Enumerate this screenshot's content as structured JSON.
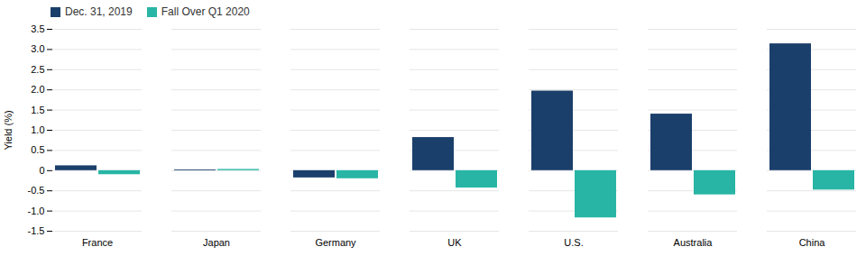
{
  "chart_data": {
    "type": "bar",
    "categories": [
      "France",
      "Japan",
      "Germany",
      "UK",
      "U.S.",
      "Australia",
      "China"
    ],
    "series": [
      {
        "name": "Dec. 31, 2019",
        "color": "#1b3f6b",
        "values": [
          0.12,
          0.02,
          -0.18,
          0.82,
          1.97,
          1.4,
          3.14
        ]
      },
      {
        "name": "Fall Over Q1 2020",
        "color": "#28b5a5",
        "values": [
          -0.1,
          0.03,
          -0.2,
          -0.43,
          -1.17,
          -0.6,
          -0.48
        ]
      }
    ],
    "ylabel": "Yield (%)",
    "ylim": [
      -1.5,
      3.5
    ],
    "yticks": [
      -1.5,
      {
        "value": -1.0,
        "label": "-1.0"
      },
      -0.5,
      0,
      0.5,
      {
        "value": 1.0,
        "label": "1.0"
      },
      1.5,
      {
        "value": 2.0,
        "label": "2.0"
      },
      2.5,
      {
        "value": 3.0,
        "label": "3.0"
      },
      3.5
    ],
    "grid": true,
    "legend": "upper left"
  }
}
